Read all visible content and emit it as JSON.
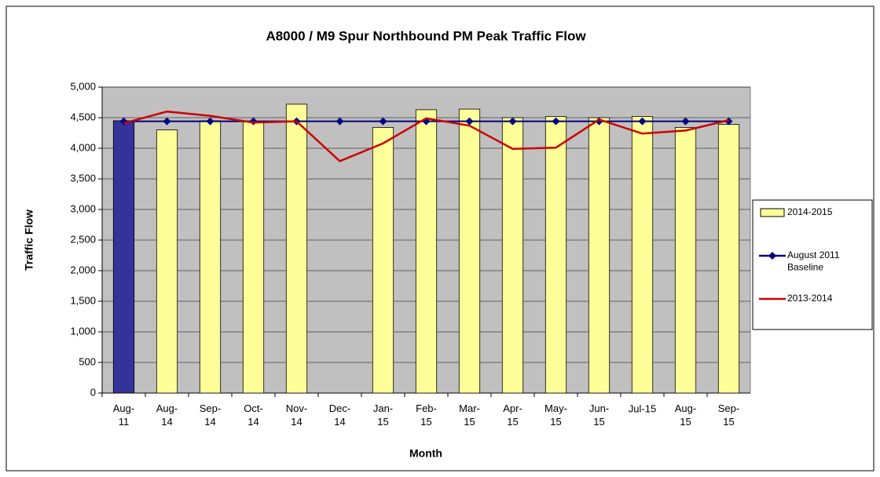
{
  "chart_data": {
    "type": "bar_line",
    "title": "A8000 / M9 Spur Northbound PM Peak Traffic Flow",
    "xlabel": "Month",
    "ylabel": "Traffic Flow",
    "categories": [
      "Aug-\n11",
      "Aug-\n14",
      "Sep-\n14",
      "Oct-\n14",
      "Nov-\n14",
      "Dec-\n14",
      "Jan-\n15",
      "Feb-\n15",
      "Mar-\n15",
      "Apr-\n15",
      "May-\n15",
      "Jun-\n15",
      "Jul-15",
      "Aug-\n15",
      "Sep-\n15"
    ],
    "series": [
      {
        "name": "2014-2015",
        "kind": "bar",
        "color": "#ffff99",
        "colors": [
          "#333399",
          "#ffff99",
          "#ffff99",
          "#ffff99",
          "#ffff99",
          "#ffff99",
          "#ffff99",
          "#ffff99",
          "#ffff99",
          "#ffff99",
          "#ffff99",
          "#ffff99",
          "#ffff99",
          "#ffff99",
          "#ffff99"
        ],
        "values": [
          4450,
          4300,
          4450,
          4430,
          4720,
          null,
          4340,
          4630,
          4640,
          4500,
          4520,
          4500,
          4520,
          4340,
          4390
        ]
      },
      {
        "name": "August 2011\nBaseline",
        "kind": "line",
        "marker": true,
        "color": "#000080",
        "values": [
          4440,
          4440,
          4440,
          4440,
          4440,
          4440,
          4440,
          4440,
          4440,
          4440,
          4440,
          4440,
          4440,
          4440,
          4440
        ]
      },
      {
        "name": "2013-2014",
        "kind": "line",
        "marker": false,
        "color": "#cc0000",
        "values": [
          4410,
          4600,
          4530,
          4420,
          4440,
          3790,
          4080,
          4490,
          4370,
          3990,
          4010,
          4470,
          4240,
          4290,
          4460
        ]
      }
    ],
    "ylim": [
      0,
      5000
    ],
    "yticks": [
      0,
      500,
      {
        "value": 1000,
        "label": "1,000"
      },
      {
        "value": 1500,
        "label": "1,500"
      },
      {
        "value": 2000,
        "label": "2,000"
      },
      {
        "value": 2500,
        "label": "2,500"
      },
      {
        "value": 3000,
        "label": "3,000"
      },
      {
        "value": 3500,
        "label": "3,500"
      },
      {
        "value": 4000,
        "label": "4,000"
      },
      {
        "value": 4500,
        "label": "4,500"
      },
      {
        "value": 5000,
        "label": "5,000"
      }
    ],
    "grid": true,
    "legend": "right"
  }
}
